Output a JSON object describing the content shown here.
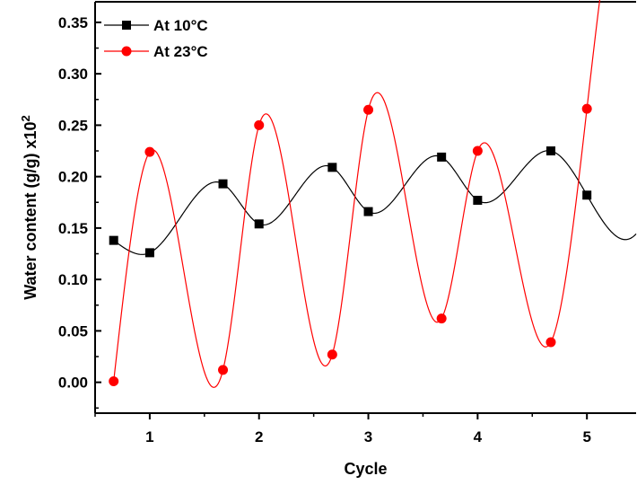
{
  "chart_data": {
    "type": "line",
    "xlabel": "Cycle",
    "ylabel": "Water content (g/g) x10",
    "ylabel_superscript": "2",
    "xlim": [
      0.5,
      5.45
    ],
    "ylim": [
      -0.03,
      0.37
    ],
    "xticks": [
      1,
      2,
      3,
      4,
      5
    ],
    "xtick_labels": [
      "1",
      "2",
      "3",
      "4",
      "5"
    ],
    "yticks": [
      0.0,
      0.05,
      0.1,
      0.15,
      0.2,
      0.25,
      0.3,
      0.35
    ],
    "ytick_labels": [
      "0.00",
      "0.05",
      "0.10",
      "0.15",
      "0.20",
      "0.25",
      "0.30",
      "0.35"
    ],
    "grid": false,
    "legend_position": "top-left",
    "series": [
      {
        "name": "At 10°C",
        "color": "#000000",
        "marker": "square",
        "x": [
          0.67,
          1.0,
          1.67,
          2.0,
          2.67,
          3.0,
          3.67,
          4.0,
          4.67,
          5.0
        ],
        "y": [
          0.138,
          0.126,
          0.193,
          0.154,
          0.209,
          0.166,
          0.219,
          0.177,
          0.225,
          0.182
        ]
      },
      {
        "name": "At 23°C",
        "color": "#ff0000",
        "marker": "circle",
        "x": [
          0.67,
          1.0,
          1.67,
          2.0,
          2.67,
          3.0,
          3.67,
          4.0,
          4.67,
          5.0
        ],
        "y": [
          0.001,
          0.224,
          0.012,
          0.25,
          0.027,
          0.265,
          0.062,
          0.225,
          0.039,
          0.266
        ]
      }
    ]
  }
}
